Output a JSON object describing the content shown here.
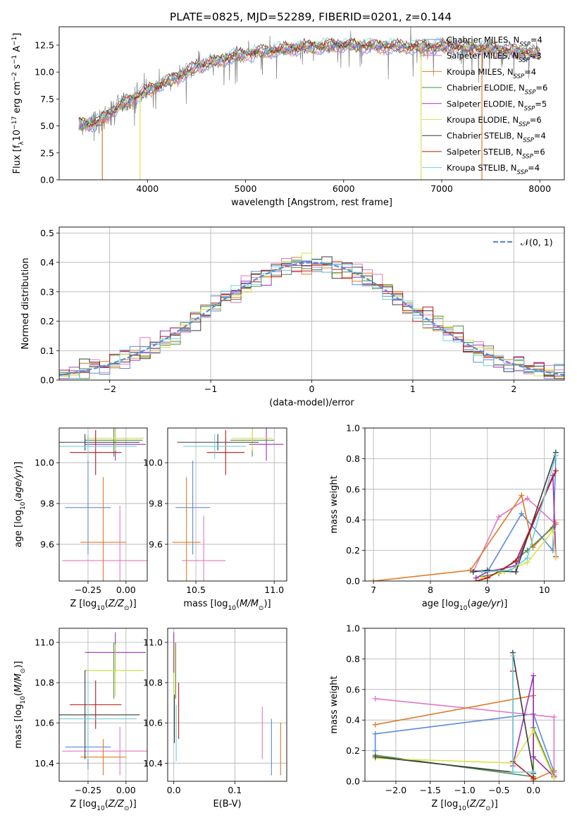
{
  "figure_title": "PLATE=0825, MJD=52289, FIBERID=0201, z=0.144",
  "colors": {
    "Chabrier MILES": "#5b8bd6",
    "Salpeter MILES": "#e377c2",
    "Kroupa MILES": "#e07b28",
    "Chabrier ELODIE": "#4c8c4a",
    "Salpeter ELODIE": "#9b30b8",
    "Kroupa ELODIE": "#d9e24a",
    "Chabrier STELIB": "#3a3a3a",
    "Salpeter STELIB": "#b51a1a",
    "Kroupa STELIB": "#6fd0d8",
    "data": "#808080",
    "normal": "#5b8bd6"
  },
  "legend_series": [
    {
      "name": "Chabrier MILES",
      "nssp": "4"
    },
    {
      "name": "Salpeter MILES",
      "nssp": "3"
    },
    {
      "name": "Kroupa MILES",
      "nssp": "4"
    },
    {
      "name": "Chabrier ELODIE",
      "nssp": "6"
    },
    {
      "name": "Salpeter ELODIE",
      "nssp": "5"
    },
    {
      "name": "Kroupa ELODIE",
      "nssp": "6"
    },
    {
      "name": "Chabrier STELIB",
      "nssp": "4"
    },
    {
      "name": "Salpeter STELIB",
      "nssp": "6"
    },
    {
      "name": "Kroupa STELIB",
      "nssp": "4"
    }
  ],
  "legend_prefix": "N",
  "legend_sub": "SSP",
  "chart_data": [
    {
      "id": "spectrum",
      "type": "line",
      "xlabel": "wavelength [Angstrom, rest frame]",
      "ylabel": "Flux [f_λ 10^-17 erg cm^-2 s^-1 A^-1]",
      "xlim": [
        3100,
        8250
      ],
      "ylim": [
        0,
        14.2
      ],
      "xticks": [
        4000,
        5000,
        6000,
        7000,
        8000
      ],
      "yticks": [
        0.0,
        2.5,
        5.0,
        7.5,
        10.0,
        12.5
      ],
      "ytick_labels": [
        "0.0",
        "2.5",
        "5.0",
        "7.5",
        "10.0",
        "12.5"
      ],
      "legend": "right",
      "continuum": [
        [
          3300,
          5.1
        ],
        [
          3500,
          5.3
        ],
        [
          3700,
          6.8
        ],
        [
          3900,
          7.8
        ],
        [
          4100,
          8.7
        ],
        [
          4300,
          9.5
        ],
        [
          4500,
          10.5
        ],
        [
          4700,
          11.0
        ],
        [
          4900,
          11.5
        ],
        [
          5100,
          11.8
        ],
        [
          5300,
          12.0
        ],
        [
          5600,
          12.3
        ],
        [
          6000,
          12.5
        ],
        [
          6400,
          12.4
        ],
        [
          6800,
          12.3
        ],
        [
          7000,
          12.4
        ],
        [
          7400,
          12.2
        ],
        [
          7700,
          12.0
        ],
        [
          7900,
          11.8
        ],
        [
          8000,
          11.7
        ]
      ]
    },
    {
      "id": "residuals",
      "type": "histogram",
      "xlabel": "(data-model)/error",
      "ylabel": "Normed distribution",
      "xlim": [
        -2.5,
        2.5
      ],
      "ylim": [
        0,
        0.52
      ],
      "xticks": [
        -2,
        -1,
        0,
        1,
        2
      ],
      "xtick_labels": [
        "−2",
        "−1",
        "0",
        "1",
        "2"
      ],
      "yticks": [
        0.0,
        0.1,
        0.2,
        0.3,
        0.4,
        0.5
      ],
      "ytick_labels": [
        "0.0",
        "0.1",
        "0.2",
        "0.3",
        "0.4",
        "0.5"
      ],
      "legend": "top-right",
      "reference_label": "𝒩(0, 1)",
      "bin_width": 0.1,
      "bin_start": -2.5
    },
    {
      "id": "age_vs_Z",
      "type": "errorbar",
      "xlabel": "Z [log10(Z/Z⊙)]",
      "ylabel": "age  [log10(age/yr)]",
      "xlim": [
        -0.44,
        0.14
      ],
      "ylim": [
        9.42,
        10.17
      ],
      "xticks": [
        -0.25,
        0.0
      ],
      "xtick_labels": [
        "−0.25",
        "0.00"
      ],
      "yticks": [
        9.6,
        9.8,
        10.0
      ],
      "ytick_labels": [
        "9.6",
        "9.8",
        "10.0"
      ],
      "points": [
        {
          "series": "Chabrier MILES",
          "x": -0.25,
          "xerr": 0.15,
          "y": 9.78,
          "yerr": 0.23
        },
        {
          "series": "Salpeter MILES",
          "x": -0.04,
          "xerr": 0.38,
          "y": 9.52,
          "yerr": 0.27
        },
        {
          "series": "Kroupa MILES",
          "x": -0.15,
          "xerr": 0.15,
          "y": 9.61,
          "yerr": 0.32
        },
        {
          "series": "Chabrier ELODIE",
          "x": -0.08,
          "xerr": 0.19,
          "y": 10.11,
          "yerr": 0.08
        },
        {
          "series": "Salpeter ELODIE",
          "x": -0.07,
          "xerr": 0.2,
          "y": 10.09,
          "yerr": 0.08
        },
        {
          "series": "Kroupa ELODIE",
          "x": -0.07,
          "xerr": 0.19,
          "y": 10.12,
          "yerr": 0.06
        },
        {
          "series": "Chabrier STELIB",
          "x": -0.27,
          "xerr": 0.36,
          "y": 10.1,
          "yerr": 0.04
        },
        {
          "series": "Salpeter STELIB",
          "x": -0.2,
          "xerr": 0.17,
          "y": 10.05,
          "yerr": 0.11
        },
        {
          "series": "Kroupa STELIB",
          "x": -0.25,
          "xerr": 0.32,
          "y": 10.08,
          "yerr": 0.06
        }
      ]
    },
    {
      "id": "age_vs_mass",
      "type": "errorbar",
      "xlabel": "mass [log10(M/M⊙)]",
      "ylabel": "",
      "xlim": [
        10.32,
        11.08
      ],
      "ylim": [
        9.42,
        10.17
      ],
      "xticks": [
        10.5,
        11.0
      ],
      "xtick_labels": [
        "10.5",
        "11.0"
      ],
      "yticks": [
        9.6,
        9.8,
        10.0
      ],
      "ytick_labels": [
        "9.6",
        "9.8",
        "10.0"
      ],
      "points": [
        {
          "series": "Chabrier MILES",
          "x": 10.48,
          "xerr": 0.11,
          "y": 9.78,
          "yerr": 0.23
        },
        {
          "series": "Salpeter MILES",
          "x": 10.55,
          "xerr": 0.14,
          "y": 9.52,
          "yerr": 0.22
        },
        {
          "series": "Kroupa MILES",
          "x": 10.44,
          "xerr": 0.09,
          "y": 9.61,
          "yerr": 0.32
        },
        {
          "series": "Chabrier ELODIE",
          "x": 10.86,
          "xerr": 0.14,
          "y": 10.11,
          "yerr": 0.08
        },
        {
          "series": "Salpeter ELODIE",
          "x": 10.95,
          "xerr": 0.11,
          "y": 10.09,
          "yerr": 0.08
        },
        {
          "series": "Kroupa ELODIE",
          "x": 10.86,
          "xerr": 0.13,
          "y": 10.12,
          "yerr": 0.06
        },
        {
          "series": "Chabrier STELIB",
          "x": 10.64,
          "xerr": 0.26,
          "y": 10.1,
          "yerr": 0.04
        },
        {
          "series": "Salpeter STELIB",
          "x": 10.69,
          "xerr": 0.12,
          "y": 10.05,
          "yerr": 0.11
        },
        {
          "series": "Kroupa STELIB",
          "x": 10.62,
          "xerr": 0.2,
          "y": 10.08,
          "yerr": 0.06
        }
      ]
    },
    {
      "id": "massweight_vs_age",
      "type": "line",
      "xlabel": "age  [log10(age/yr)]",
      "ylabel": "mass weight",
      "xlim": [
        6.85,
        10.35
      ],
      "ylim": [
        0,
        1.0
      ],
      "xticks": [
        7,
        8,
        9,
        10
      ],
      "xtick_labels": [
        "7",
        "8",
        "9",
        "10"
      ],
      "yticks": [
        0.0,
        0.2,
        0.4,
        0.6,
        0.8,
        1.0
      ],
      "ytick_labels": [
        "0.0",
        "0.2",
        "0.4",
        "0.6",
        "0.8",
        "1.0"
      ],
      "series": [
        {
          "name": "Chabrier MILES",
          "points": [
            [
              8.7,
              0.07
            ],
            [
              9.0,
              0.06
            ],
            [
              9.6,
              0.44
            ],
            [
              10.15,
              0.2
            ],
            [
              10.2,
              0.82
            ]
          ]
        },
        {
          "name": "Salpeter MILES",
          "points": [
            [
              8.75,
              0.06
            ],
            [
              9.2,
              0.42
            ],
            [
              9.7,
              0.54
            ],
            [
              10.2,
              0.37
            ]
          ]
        },
        {
          "name": "Kroupa MILES",
          "points": [
            [
              7.0,
              0.0
            ],
            [
              8.7,
              0.07
            ],
            [
              9.6,
              0.56
            ],
            [
              9.8,
              0.22
            ],
            [
              10.2,
              0.38
            ]
          ]
        },
        {
          "name": "Chabrier ELODIE",
          "points": [
            [
              8.9,
              0.03
            ],
            [
              9.2,
              0.05
            ],
            [
              9.7,
              0.2
            ],
            [
              10.15,
              0.35
            ]
          ]
        },
        {
          "name": "Salpeter ELODIE",
          "points": [
            [
              8.8,
              0.02
            ],
            [
              9.0,
              0.06
            ],
            [
              9.5,
              0.1
            ],
            [
              10.15,
              0.69
            ],
            [
              10.2,
              0.16
            ]
          ]
        },
        {
          "name": "Kroupa ELODIE",
          "points": [
            [
              8.9,
              0.02
            ],
            [
              9.3,
              0.06
            ],
            [
              9.7,
              0.12
            ],
            [
              10.15,
              0.33
            ],
            [
              10.2,
              0.15
            ]
          ]
        },
        {
          "name": "Chabrier STELIB",
          "points": [
            [
              8.75,
              0.06
            ],
            [
              9.0,
              0.07
            ],
            [
              9.5,
              0.06
            ],
            [
              10.2,
              0.84
            ]
          ]
        },
        {
          "name": "Salpeter STELIB",
          "points": [
            [
              8.8,
              0.0
            ],
            [
              9.0,
              0.02
            ],
            [
              9.5,
              0.13
            ],
            [
              10.2,
              0.72
            ]
          ]
        },
        {
          "name": "Kroupa STELIB",
          "points": [
            [
              8.9,
              0.06
            ],
            [
              9.4,
              0.07
            ],
            [
              9.7,
              0.15
            ],
            [
              10.2,
              0.82
            ]
          ]
        }
      ]
    },
    {
      "id": "mass_vs_Z",
      "type": "errorbar",
      "xlabel": "Z [log10(Z/Z⊙)]",
      "ylabel": "mass [log10(M/M⊙)]",
      "xlim": [
        -0.44,
        0.14
      ],
      "ylim": [
        10.31,
        11.07
      ],
      "xticks": [
        -0.25,
        0.0
      ],
      "xtick_labels": [
        "−0.25",
        "0.00"
      ],
      "yticks": [
        10.4,
        10.6,
        10.8,
        11.0
      ],
      "ytick_labels": [
        "10.4",
        "10.6",
        "10.8",
        "11.0"
      ],
      "points": [
        {
          "series": "Chabrier MILES",
          "x": -0.25,
          "xerr": 0.15,
          "y": 10.48,
          "yerr": 0.11
        },
        {
          "series": "Salpeter MILES",
          "x": -0.04,
          "xerr": 0.38,
          "y": 10.46,
          "yerr": 0.12
        },
        {
          "series": "Kroupa MILES",
          "x": -0.15,
          "xerr": 0.15,
          "y": 10.43,
          "yerr": 0.09
        },
        {
          "series": "Chabrier ELODIE",
          "x": -0.08,
          "xerr": 0.19,
          "y": 10.86,
          "yerr": 0.14
        },
        {
          "series": "Salpeter ELODIE",
          "x": -0.07,
          "xerr": 0.2,
          "y": 10.95,
          "yerr": 0.1
        },
        {
          "series": "Kroupa ELODIE",
          "x": -0.07,
          "xerr": 0.19,
          "y": 10.86,
          "yerr": 0.13
        },
        {
          "series": "Chabrier STELIB",
          "x": -0.27,
          "xerr": 0.36,
          "y": 10.64,
          "yerr": 0.22
        },
        {
          "series": "Salpeter STELIB",
          "x": -0.2,
          "xerr": 0.17,
          "y": 10.69,
          "yerr": 0.12
        },
        {
          "series": "Kroupa STELIB",
          "x": -0.25,
          "xerr": 0.32,
          "y": 10.62,
          "yerr": 0.2
        }
      ]
    },
    {
      "id": "mass_vs_EBV",
      "type": "errorbar",
      "xlabel": "E(B-V)",
      "ylabel": "",
      "xlim": [
        -0.01,
        0.185
      ],
      "ylim": [
        10.31,
        11.07
      ],
      "xticks": [
        0.0,
        0.1
      ],
      "xtick_labels": [
        "0.0",
        "0.1"
      ],
      "yticks": [
        10.4,
        10.6,
        10.8,
        11.0
      ],
      "ytick_labels": [
        "10.4",
        "10.6",
        "10.8",
        "11.0"
      ],
      "points": [
        {
          "series": "Chabrier MILES",
          "x": 0.16,
          "xerr": 0,
          "y": 10.48,
          "yerr": 0.14
        },
        {
          "series": "Salpeter MILES",
          "x": 0.145,
          "xerr": 0,
          "y": 10.55,
          "yerr": 0.13
        },
        {
          "series": "Kroupa MILES",
          "x": 0.175,
          "xerr": 0,
          "y": 10.47,
          "yerr": 0.13
        },
        {
          "series": "Chabrier ELODIE",
          "x": 0.003,
          "xerr": 0,
          "y": 10.86,
          "yerr": 0.14
        },
        {
          "series": "Salpeter ELODIE",
          "x": 0.0,
          "xerr": 0,
          "y": 10.95,
          "yerr": 0.1
        },
        {
          "series": "Kroupa ELODIE",
          "x": 0.002,
          "xerr": 0,
          "y": 10.86,
          "yerr": 0.13
        },
        {
          "series": "Chabrier STELIB",
          "x": 0.001,
          "xerr": 0,
          "y": 10.62,
          "yerr": 0.12
        },
        {
          "series": "Salpeter STELIB",
          "x": 0.008,
          "xerr": 0,
          "y": 10.66,
          "yerr": 0.14
        },
        {
          "series": "Kroupa STELIB",
          "x": 0.004,
          "xerr": 0,
          "y": 10.55,
          "yerr": 0.14
        }
      ]
    },
    {
      "id": "massweight_vs_Z",
      "type": "line",
      "xlabel": "Z [log10(Z/Z⊙)]",
      "ylabel": "mass weight",
      "xlim": [
        -2.45,
        0.45
      ],
      "ylim": [
        0,
        1.0
      ],
      "xticks": [
        -2.0,
        -1.5,
        -1.0,
        -0.5,
        0.0
      ],
      "xtick_labels": [
        "−2.0",
        "−1.5",
        "−1.0",
        "−0.5",
        "0.0"
      ],
      "yticks": [
        0.0,
        0.2,
        0.4,
        0.6,
        0.8,
        1.0
      ],
      "ytick_labels": [
        "0.0",
        "0.2",
        "0.4",
        "0.6",
        "0.8",
        "1.0"
      ],
      "series": [
        {
          "name": "Chabrier MILES",
          "points": [
            [
              -2.3,
              0.2
            ],
            [
              -2.3,
              0.31
            ],
            [
              0.0,
              0.44
            ],
            [
              0.3,
              0.06
            ]
          ]
        },
        {
          "name": "Salpeter MILES",
          "points": [
            [
              -2.3,
              0.54
            ],
            [
              0.3,
              0.42
            ],
            [
              0.3,
              0.04
            ]
          ]
        },
        {
          "name": "Kroupa MILES",
          "points": [
            [
              -2.3,
              0.37
            ],
            [
              0.0,
              0.56
            ],
            [
              0.0,
              0.01
            ],
            [
              0.3,
              0.07
            ]
          ]
        },
        {
          "name": "Chabrier ELODIE",
          "points": [
            [
              -2.3,
              0.17
            ],
            [
              0.0,
              0.03
            ],
            [
              0.0,
              0.35
            ],
            [
              0.3,
              0.03
            ]
          ]
        },
        {
          "name": "Salpeter ELODIE",
          "points": [
            [
              -0.3,
              0.1
            ],
            [
              0.0,
              0.69
            ],
            [
              0.0,
              0.16
            ],
            [
              0.3,
              0.03
            ]
          ]
        },
        {
          "name": "Kroupa ELODIE",
          "points": [
            [
              -2.3,
              0.15
            ],
            [
              -0.3,
              0.12
            ],
            [
              0.0,
              0.33
            ],
            [
              0.3,
              0.02
            ]
          ]
        },
        {
          "name": "Chabrier STELIB",
          "points": [
            [
              -2.3,
              0.16
            ],
            [
              -0.3,
              0.06
            ],
            [
              -0.3,
              0.84
            ],
            [
              0.0,
              0.05
            ]
          ]
        },
        {
          "name": "Salpeter STELIB",
          "points": [
            [
              -0.3,
              0.72
            ],
            [
              -0.3,
              0.13
            ],
            [
              0.0,
              0.02
            ]
          ]
        },
        {
          "name": "Kroupa STELIB",
          "points": [
            [
              -0.3,
              0.82
            ],
            [
              -0.3,
              0.06
            ],
            [
              0.0,
              0.06
            ]
          ]
        }
      ]
    }
  ]
}
